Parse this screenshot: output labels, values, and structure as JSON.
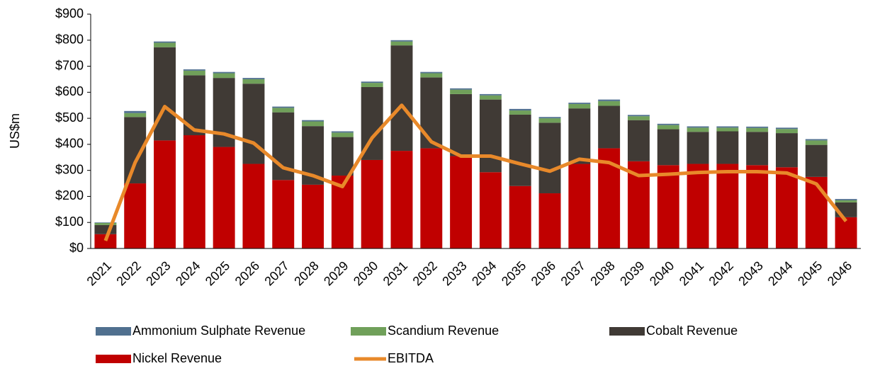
{
  "chart_data": {
    "type": "bar",
    "y_axis_label": "US$m",
    "categories": [
      "2021",
      "2022",
      "2023",
      "2024",
      "2025",
      "2026",
      "2027",
      "2028",
      "2029",
      "2030",
      "2031",
      "2032",
      "2033",
      "2034",
      "2035",
      "2036",
      "2037",
      "2038",
      "2039",
      "2040",
      "2041",
      "2042",
      "2043",
      "2044",
      "2045",
      "2046"
    ],
    "series": [
      {
        "name": "Ammonium Sulphate Revenue",
        "color": "#50708f",
        "type": "bar",
        "values": [
          2,
          8,
          5,
          5,
          5,
          5,
          5,
          5,
          5,
          5,
          5,
          5,
          5,
          5,
          6,
          5,
          5,
          6,
          5,
          5,
          5,
          5,
          5,
          5,
          5,
          5
        ]
      },
      {
        "name": "Scandium Revenue",
        "color": "#70a05a",
        "type": "bar",
        "values": [
          8,
          15,
          17,
          18,
          18,
          17,
          17,
          18,
          17,
          16,
          15,
          16,
          17,
          16,
          16,
          17,
          17,
          18,
          15,
          16,
          16,
          14,
          15,
          16,
          17,
          8
        ]
      },
      {
        "name": "Cobalt Revenue",
        "color": "#403a35",
        "type": "bar",
        "values": [
          35,
          255,
          358,
          230,
          265,
          308,
          260,
          225,
          148,
          280,
          405,
          272,
          238,
          279,
          274,
          271,
          213,
          163,
          158,
          138,
          123,
          125,
          128,
          131,
          123,
          57
        ]
      },
      {
        "name": "Nickel Revenue",
        "color": "#c00000",
        "type": "bar",
        "values": [
          55,
          250,
          415,
          435,
          390,
          325,
          263,
          245,
          280,
          340,
          375,
          385,
          355,
          293,
          240,
          212,
          325,
          385,
          335,
          320,
          325,
          325,
          320,
          312,
          275,
          120
        ]
      },
      {
        "name": "EBITDA",
        "color": "#e8892a",
        "type": "line",
        "values": [
          30,
          330,
          545,
          455,
          440,
          405,
          310,
          280,
          238,
          425,
          550,
          410,
          355,
          355,
          325,
          297,
          343,
          330,
          280,
          285,
          292,
          295,
          295,
          290,
          248,
          105
        ]
      }
    ],
    "ylim": [
      0,
      900
    ],
    "yticks": [
      {
        "value": 0,
        "label": "$0"
      },
      {
        "value": 100,
        "label": "$100"
      },
      {
        "value": 200,
        "label": "$200"
      },
      {
        "value": 300,
        "label": "$300"
      },
      {
        "value": 400,
        "label": "$400"
      },
      {
        "value": 500,
        "label": "$500"
      },
      {
        "value": 600,
        "label": "$600"
      },
      {
        "value": 700,
        "label": "$700"
      },
      {
        "value": 800,
        "label": "$800"
      },
      {
        "value": 900,
        "label": "$900"
      }
    ],
    "grid": false
  }
}
